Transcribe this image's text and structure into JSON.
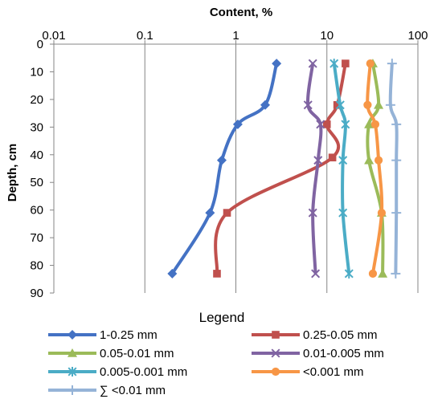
{
  "chart_data": {
    "type": "line",
    "title": "Content, %",
    "xlabel": "Content, %",
    "ylabel": "Depth, cm",
    "x_scale": "log",
    "x_axis_position": "top",
    "xlim": [
      0.01,
      100
    ],
    "ylim": [
      0,
      90
    ],
    "y_inverted": true,
    "x_ticks": [
      "0.01",
      "0.1",
      "1",
      "10",
      "100"
    ],
    "y_ticks": [
      "0",
      "10",
      "20",
      "30",
      "40",
      "50",
      "60",
      "70",
      "80",
      "90"
    ],
    "grid": "vertical",
    "legend_title": "Legend",
    "legend_position": "bottom",
    "series": [
      {
        "name": "1-0.25 mm",
        "color": "#4472C4",
        "marker": "diamond",
        "x": [
          2.8,
          2.1,
          1.05,
          0.7,
          0.52,
          0.2
        ],
        "depth": [
          7,
          22,
          29,
          42,
          61,
          83
        ]
      },
      {
        "name": "0.25-0.05 mm",
        "color": "#C0504D",
        "marker": "square",
        "x": [
          16,
          13,
          10,
          11.5,
          0.8,
          0.62
        ],
        "depth": [
          7,
          22,
          29,
          41,
          61,
          83
        ]
      },
      {
        "name": "0.05-0.01 mm",
        "color": "#9BBB59",
        "marker": "triangle",
        "x": [
          32,
          37,
          29,
          29,
          40,
          41
        ],
        "depth": [
          7,
          22,
          29,
          42,
          61,
          83
        ]
      },
      {
        "name": "0.01-0.005 mm",
        "color": "#8064A2",
        "marker": "x",
        "x": [
          7,
          6.2,
          8.5,
          8,
          7,
          7.5
        ],
        "depth": [
          7,
          22,
          29,
          42,
          61,
          83
        ]
      },
      {
        "name": "0.005-0.001 mm",
        "color": "#4BACC6",
        "marker": "asterisk",
        "x": [
          12,
          14,
          16,
          15,
          15,
          17.5
        ],
        "depth": [
          7,
          22,
          29,
          42,
          61,
          83
        ]
      },
      {
        "name": "<0.001 mm",
        "color": "#F79646",
        "marker": "circle",
        "x": [
          30,
          28,
          34,
          37,
          40,
          32
        ],
        "depth": [
          7,
          22,
          29,
          42,
          61,
          83
        ]
      },
      {
        "name": "∑ <0.01 mm",
        "color": "#95B3D7",
        "marker": "plus",
        "x": [
          52,
          50,
          58,
          58,
          58,
          57
        ],
        "depth": [
          7,
          22,
          29,
          42,
          61,
          83
        ]
      }
    ]
  }
}
